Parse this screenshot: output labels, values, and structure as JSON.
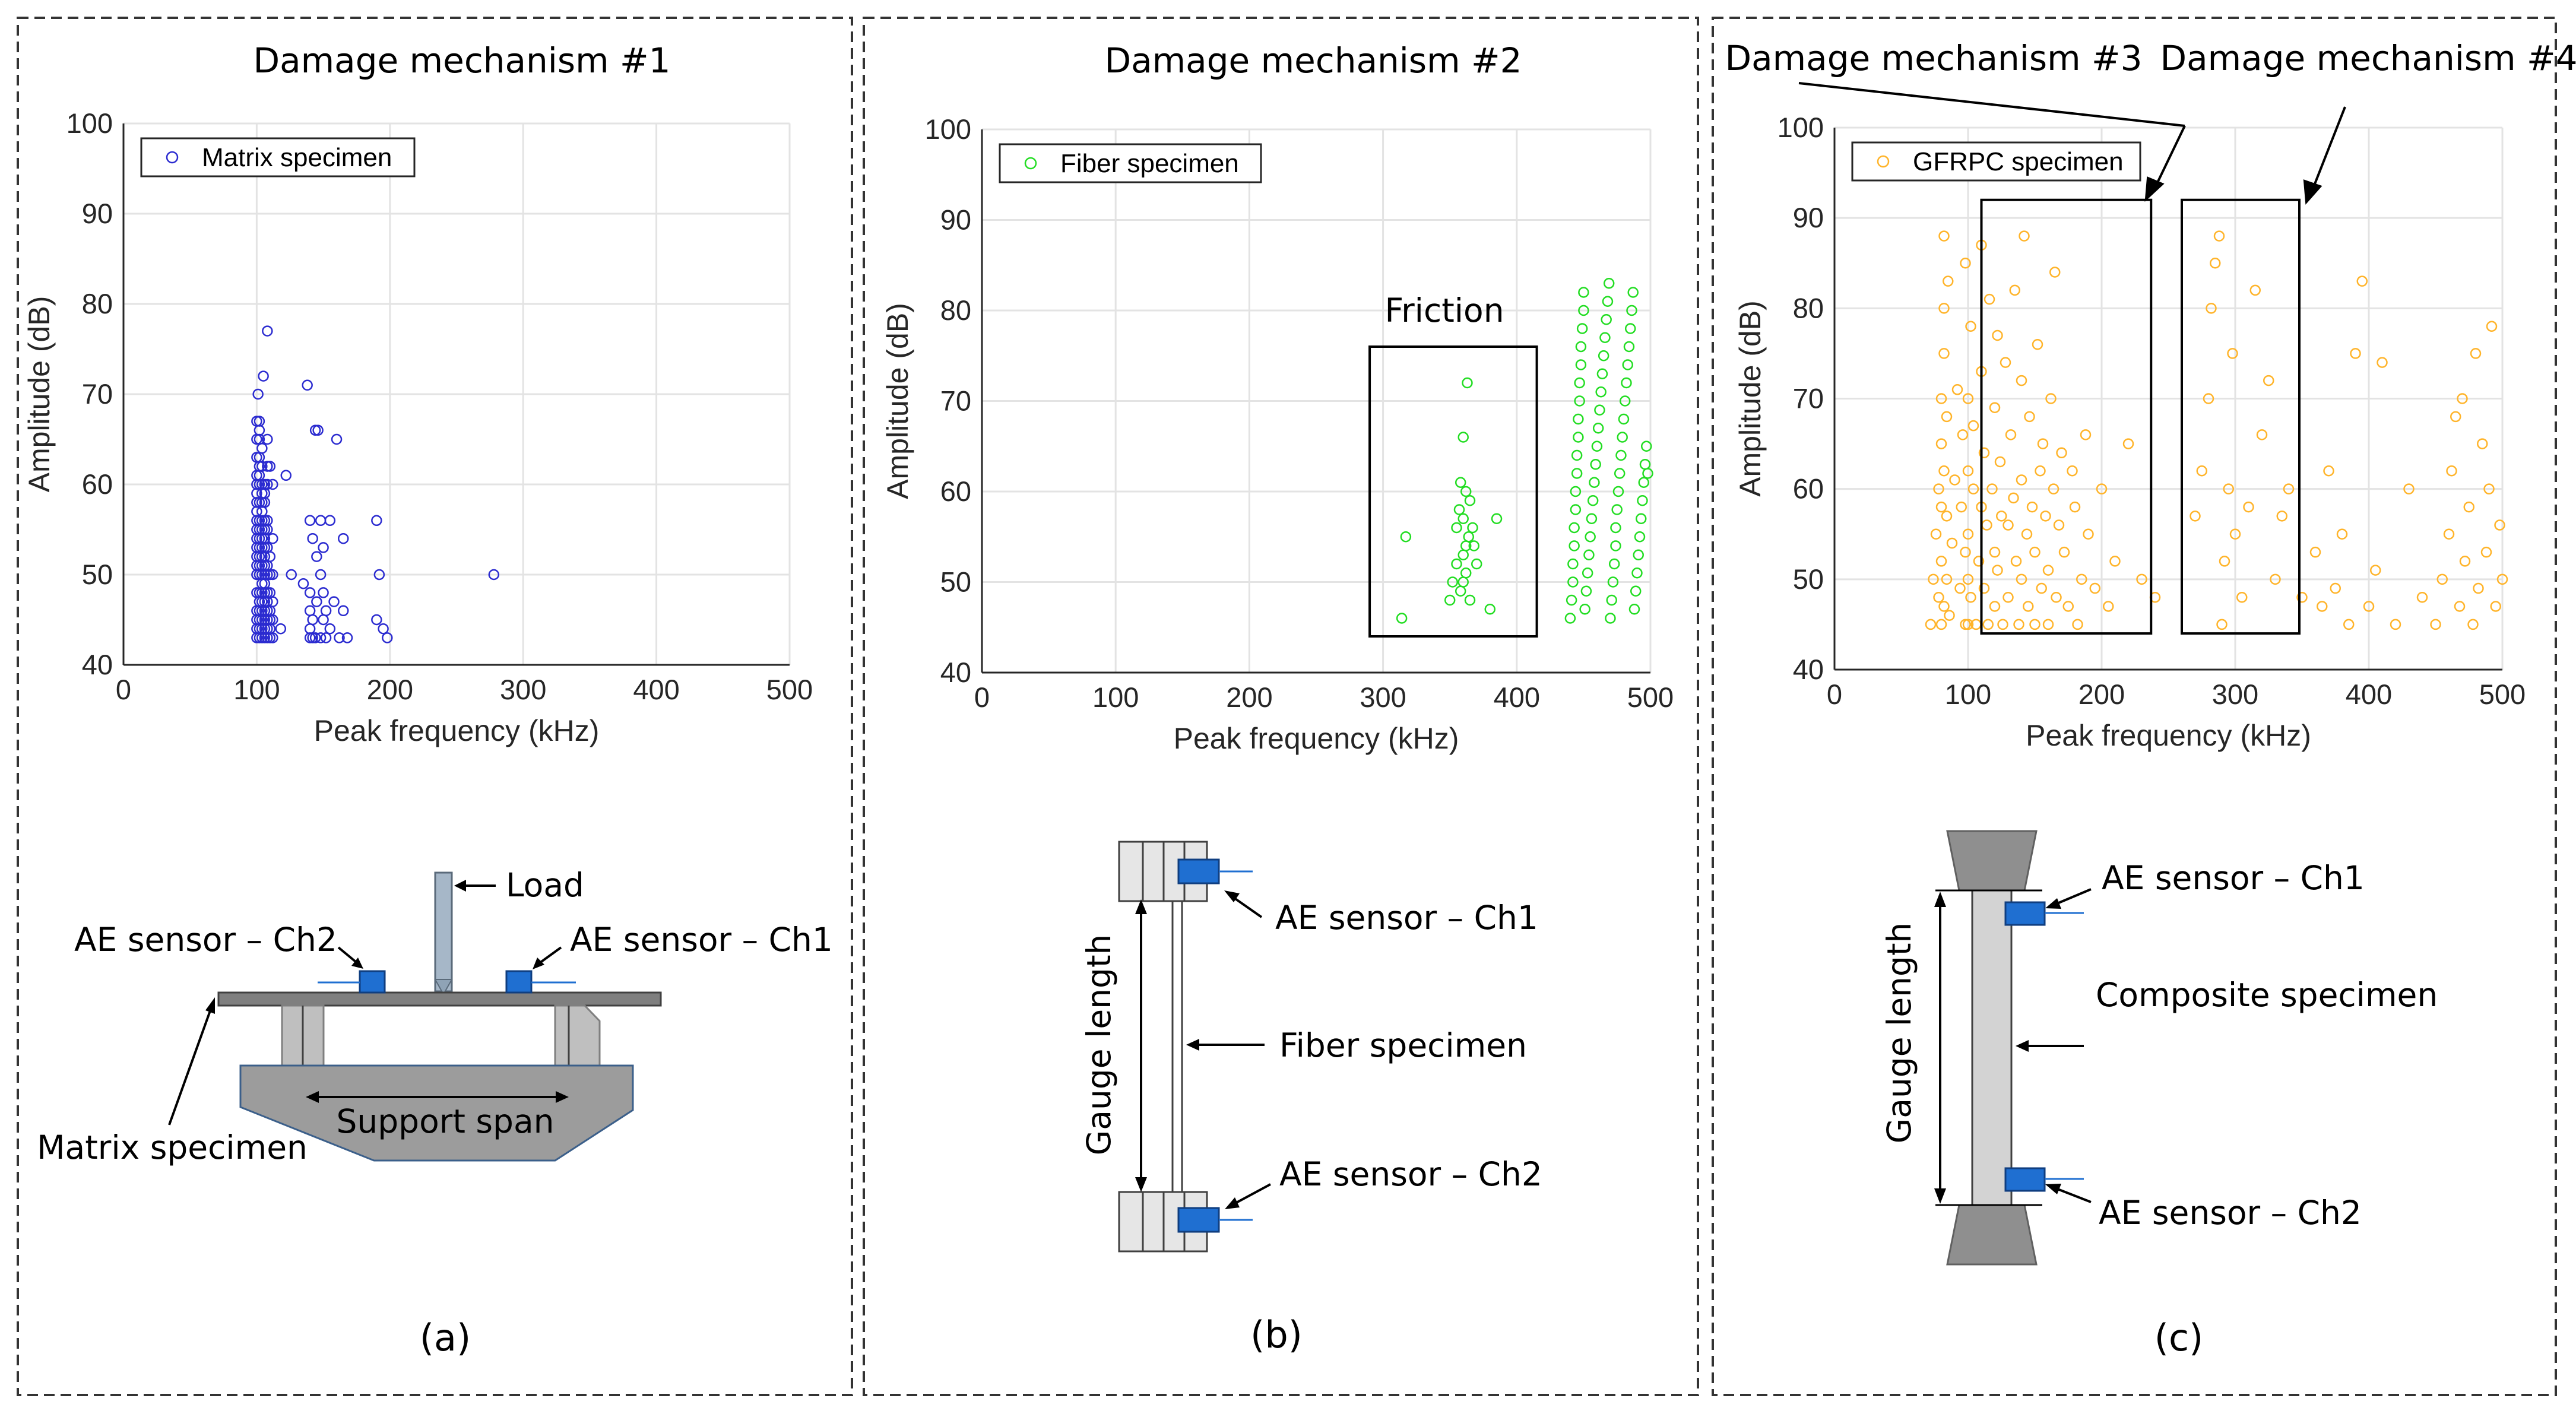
{
  "panels": [
    {
      "id": "a",
      "title": "Damage mechanism #1",
      "caption": "(a)",
      "labels": {
        "load": "Load",
        "sensor_left": "AE sensor – Ch2",
        "sensor_right": "AE sensor – Ch1",
        "specimen": "Matrix specimen",
        "support_span": "Support span"
      }
    },
    {
      "id": "b",
      "title": "Damage mechanism #2",
      "caption": "(b)",
      "friction_label": "Friction",
      "labels": {
        "sensor_top": "AE sensor – Ch1",
        "specimen": "Fiber specimen",
        "sensor_bottom": "AE sensor – Ch2",
        "gauge": "Gauge length"
      }
    },
    {
      "id": "c",
      "title_3": "Damage mechanism #3",
      "title_4": "Damage mechanism #4",
      "caption": "(c)",
      "labels": {
        "sensor_top": "AE sensor – Ch1",
        "specimen": "Composite specimen",
        "sensor_bottom": "AE sensor – Ch2",
        "gauge": "Gauge length"
      }
    }
  ],
  "chart_data": [
    {
      "type": "scatter",
      "title": "Damage mechanism #1",
      "xlabel": "Peak frequency (kHz)",
      "ylabel": "Amplitude (dB)",
      "xlim": [
        0,
        500
      ],
      "ylim": [
        40,
        100
      ],
      "xticks": [
        0,
        100,
        200,
        300,
        400,
        500
      ],
      "yticks": [
        40,
        50,
        60,
        70,
        80,
        90,
        100
      ],
      "grid": true,
      "legend": "top-left",
      "color": "#2b2bd0",
      "series": [
        {
          "name": "Matrix specimen",
          "x": [
            100,
            100,
            100,
            100,
            100,
            100,
            100,
            100,
            100,
            100,
            100,
            100,
            100,
            100,
            100,
            100,
            100,
            100,
            100,
            100,
            101,
            102,
            102,
            102,
            102,
            102,
            102,
            102,
            102,
            102,
            102,
            102,
            102,
            102,
            102,
            102,
            102,
            102,
            102,
            102,
            102,
            102,
            104,
            104,
            104,
            104,
            104,
            104,
            104,
            104,
            104,
            104,
            104,
            104,
            104,
            104,
            104,
            104,
            104,
            104,
            104,
            104,
            105,
            106,
            106,
            106,
            106,
            106,
            106,
            106,
            106,
            106,
            106,
            106,
            106,
            106,
            106,
            106,
            106,
            106,
            108,
            108,
            108,
            108,
            108,
            108,
            108,
            108,
            108,
            108,
            108,
            108,
            108,
            108,
            108,
            110,
            110,
            110,
            110,
            110,
            110,
            110,
            110,
            112,
            112,
            112,
            112,
            112,
            112,
            118,
            122,
            126,
            135,
            138,
            140,
            140,
            140,
            140,
            140,
            142,
            142,
            142,
            144,
            144,
            145,
            145,
            146,
            148,
            148,
            148,
            150,
            150,
            150,
            152,
            152,
            155,
            155,
            158,
            160,
            162,
            165,
            165,
            168,
            190,
            190,
            192,
            195,
            198,
            278
          ],
          "y": [
            43,
            44,
            45,
            46,
            48,
            50,
            51,
            52,
            53,
            54,
            55,
            56,
            57,
            58,
            59,
            60,
            61,
            63,
            65,
            67,
            70,
            43,
            44,
            45,
            46,
            47,
            48,
            50,
            51,
            52,
            53,
            54,
            55,
            56,
            58,
            60,
            61,
            62,
            63,
            65,
            66,
            67,
            43,
            44,
            45,
            46,
            47,
            48,
            49,
            50,
            51,
            52,
            53,
            54,
            55,
            56,
            57,
            58,
            59,
            60,
            62,
            64,
            72,
            43,
            44,
            45,
            46,
            47,
            48,
            49,
            50,
            51,
            52,
            53,
            54,
            55,
            56,
            58,
            59,
            60,
            43,
            44,
            45,
            46,
            47,
            48,
            50,
            51,
            53,
            55,
            56,
            60,
            62,
            65,
            77,
            43,
            44,
            45,
            46,
            48,
            50,
            52,
            62,
            43,
            45,
            47,
            50,
            54,
            60,
            44,
            61,
            50,
            49,
            71,
            43,
            44,
            46,
            48,
            56,
            43,
            45,
            54,
            43,
            66,
            47,
            52,
            66,
            43,
            50,
            56,
            45,
            48,
            53,
            43,
            46,
            56,
            44,
            47,
            65,
            43,
            54,
            46,
            43,
            45,
            56,
            50,
            44,
            43,
            50
          ]
        }
      ]
    },
    {
      "type": "scatter",
      "title": "Damage mechanism #2",
      "xlabel": "Peak frequency (kHz)",
      "ylabel": "Amplitude (dB)",
      "xlim": [
        0,
        500
      ],
      "ylim": [
        40,
        100
      ],
      "xticks": [
        0,
        100,
        200,
        300,
        400,
        500
      ],
      "yticks": [
        40,
        50,
        60,
        70,
        80,
        90,
        100
      ],
      "grid": true,
      "legend": "top-left",
      "color": "#22dd22",
      "annotation": {
        "text": "Friction",
        "x_range": [
          290,
          415
        ],
        "y_range": [
          44,
          76
        ]
      },
      "series": [
        {
          "name": "Fiber specimen",
          "x": [
            314,
            317,
            350,
            352,
            355,
            355,
            357,
            358,
            358,
            360,
            360,
            360,
            360,
            362,
            362,
            362,
            363,
            364,
            365,
            365,
            367,
            368,
            370,
            380,
            385,
            440,
            441,
            442,
            442,
            443,
            443,
            444,
            444,
            445,
            445,
            446,
            446,
            447,
            447,
            448,
            448,
            449,
            450,
            450,
            451,
            452,
            453,
            454,
            455,
            456,
            457,
            458,
            459,
            460,
            461,
            462,
            463,
            464,
            465,
            466,
            467,
            468,
            469,
            470,
            471,
            472,
            473,
            474,
            474,
            475,
            476,
            477,
            478,
            479,
            480,
            481,
            482,
            483,
            484,
            485,
            486,
            487,
            488,
            489,
            490,
            491,
            492,
            493,
            494,
            495,
            496,
            497,
            498
          ],
          "y": [
            46,
            55,
            48,
            50,
            52,
            56,
            58,
            49,
            61,
            50,
            53,
            57,
            66,
            51,
            54,
            60,
            72,
            55,
            48,
            59,
            56,
            54,
            52,
            47,
            57,
            46,
            48,
            50,
            52,
            54,
            56,
            58,
            60,
            62,
            64,
            66,
            68,
            70,
            72,
            74,
            76,
            78,
            80,
            82,
            47,
            49,
            51,
            53,
            55,
            57,
            59,
            61,
            63,
            65,
            67,
            69,
            71,
            73,
            75,
            77,
            79,
            81,
            83,
            46,
            48,
            50,
            52,
            54,
            56,
            58,
            60,
            62,
            64,
            66,
            68,
            70,
            72,
            74,
            76,
            78,
            80,
            82,
            47,
            49,
            51,
            53,
            55,
            57,
            59,
            61,
            63,
            65,
            62
          ]
        }
      ]
    },
    {
      "type": "scatter",
      "title": "Damage mechanism #3 / Damage mechanism #4",
      "xlabel": "Peak frequency (kHz)",
      "ylabel": "Amplitude (dB)",
      "xlim": [
        0,
        500
      ],
      "ylim": [
        40,
        100
      ],
      "xticks": [
        0,
        100,
        200,
        300,
        400,
        500
      ],
      "yticks": [
        40,
        50,
        60,
        70,
        80,
        90,
        100
      ],
      "grid": true,
      "legend": "top-left",
      "color": "#ffb42a",
      "boxes": [
        {
          "label": "Damage mechanism #3",
          "x_range": [
            110,
            237
          ],
          "y_range": [
            44,
            92
          ]
        },
        {
          "label": "Damage mechanism #4",
          "x_range": [
            260,
            348
          ],
          "y_range": [
            44,
            92
          ]
        }
      ],
      "series": [
        {
          "name": "GFRPC specimen",
          "x": [
            72,
            74,
            76,
            78,
            78,
            80,
            80,
            80,
            80,
            80,
            82,
            82,
            82,
            82,
            82,
            84,
            84,
            84,
            85,
            86,
            88,
            90,
            92,
            94,
            95,
            96,
            98,
            98,
            98,
            100,
            100,
            100,
            100,
            100,
            102,
            102,
            104,
            104,
            106,
            108,
            110,
            110,
            110,
            112,
            112,
            114,
            115,
            116,
            118,
            120,
            120,
            120,
            122,
            122,
            124,
            125,
            126,
            128,
            130,
            130,
            132,
            134,
            135,
            136,
            138,
            140,
            140,
            140,
            142,
            144,
            145,
            146,
            148,
            150,
            150,
            152,
            154,
            155,
            156,
            158,
            160,
            160,
            162,
            164,
            165,
            166,
            168,
            170,
            172,
            175,
            178,
            180,
            182,
            185,
            188,
            190,
            195,
            200,
            205,
            210,
            220,
            230,
            240,
            270,
            275,
            280,
            282,
            285,
            288,
            290,
            292,
            295,
            298,
            300,
            305,
            310,
            315,
            320,
            325,
            330,
            335,
            340,
            350,
            360,
            365,
            370,
            375,
            380,
            385,
            390,
            395,
            400,
            405,
            410,
            420,
            430,
            440,
            450,
            455,
            460,
            462,
            465,
            468,
            470,
            472,
            475,
            478,
            480,
            482,
            485,
            488,
            490,
            492,
            495,
            498,
            500
          ],
          "y": [
            45,
            50,
            55,
            60,
            48,
            45,
            52,
            58,
            65,
            70,
            47,
            62,
            75,
            80,
            88,
            50,
            57,
            68,
            83,
            46,
            54,
            61,
            71,
            49,
            58,
            66,
            45,
            53,
            85,
            45,
            50,
            55,
            62,
            70,
            78,
            48,
            60,
            67,
            45,
            52,
            58,
            73,
            87,
            49,
            64,
            56,
            45,
            81,
            60,
            47,
            53,
            69,
            77,
            51,
            63,
            57,
            45,
            74,
            48,
            56,
            66,
            59,
            82,
            52,
            45,
            50,
            61,
            72,
            88,
            55,
            47,
            68,
            58,
            45,
            53,
            76,
            62,
            49,
            65,
            57,
            45,
            51,
            70,
            60,
            84,
            48,
            56,
            64,
            53,
            47,
            62,
            58,
            45,
            50,
            66,
            55,
            49,
            60,
            47,
            52,
            65,
            50,
            48,
            57,
            62,
            70,
            80,
            85,
            88,
            45,
            52,
            60,
            75,
            55,
            48,
            58,
            82,
            66,
            72,
            50,
            57,
            60,
            48,
            53,
            47,
            62,
            49,
            55,
            45,
            75,
            83,
            47,
            51,
            74,
            45,
            60,
            48,
            45,
            50,
            55,
            62,
            68,
            47,
            70,
            52,
            58,
            45,
            75,
            49,
            65,
            53,
            60,
            78,
            47,
            56,
            50
          ]
        }
      ]
    }
  ]
}
